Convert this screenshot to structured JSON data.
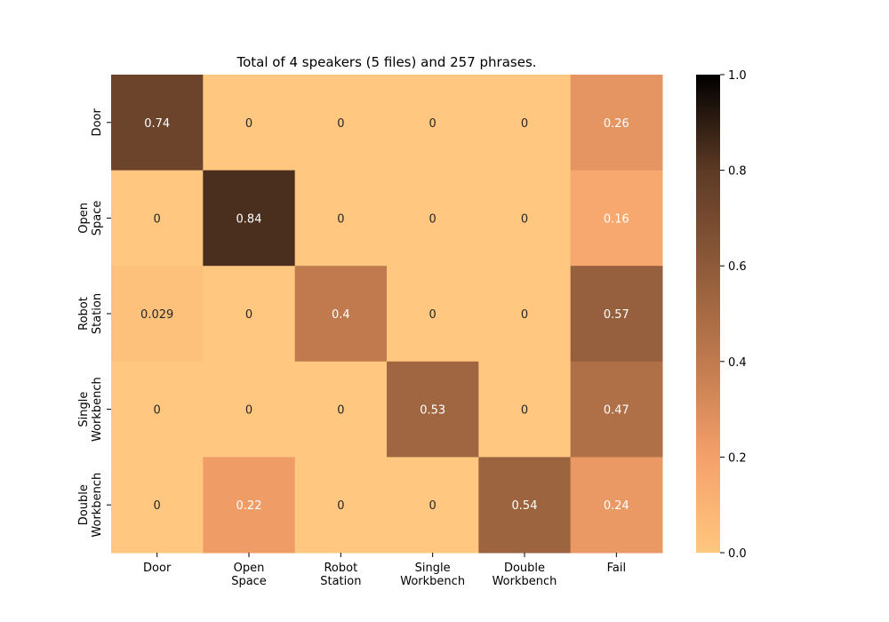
{
  "chart_data": {
    "type": "heatmap",
    "title": "Total of 4 speakers (5 files) and 257 phrases.",
    "xlabel": "",
    "ylabel": "",
    "x_categories": [
      [
        "Door"
      ],
      [
        "Open",
        "Space"
      ],
      [
        "Robot",
        "Station"
      ],
      [
        "Single",
        "Workbench"
      ],
      [
        "Double",
        "Workbench"
      ],
      [
        "Fail"
      ]
    ],
    "y_categories": [
      [
        "Door"
      ],
      [
        "Open",
        "Space"
      ],
      [
        "Robot",
        "Station"
      ],
      [
        "Single",
        "Workbench"
      ],
      [
        "Double",
        "Workbench"
      ]
    ],
    "values": [
      [
        0.74,
        0,
        0,
        0,
        0,
        0.26
      ],
      [
        0,
        0.84,
        0,
        0,
        0,
        0.16
      ],
      [
        0.029,
        0,
        0.4,
        0,
        0,
        0.57
      ],
      [
        0,
        0,
        0,
        0.53,
        0,
        0.47
      ],
      [
        0,
        0.22,
        0,
        0,
        0.54,
        0.24
      ]
    ],
    "labels": [
      [
        "0.74",
        "0",
        "0",
        "0",
        "0",
        "0.26"
      ],
      [
        "0",
        "0.84",
        "0",
        "0",
        "0",
        "0.16"
      ],
      [
        "0.029",
        "0",
        "0.4",
        "0",
        "0",
        "0.57"
      ],
      [
        "0",
        "0",
        "0",
        "0.53",
        "0",
        "0.47"
      ],
      [
        "0",
        "0.22",
        "0",
        "0",
        "0.54",
        "0.24"
      ]
    ],
    "colormap": "copper_r",
    "color_range": [
      0,
      1
    ],
    "colorbar_ticks": [
      "0.0",
      "0.2",
      "0.4",
      "0.6",
      "0.8",
      "1.0"
    ],
    "colorbar_tick_values": [
      0,
      0.2,
      0.4,
      0.6,
      0.8,
      1.0
    ],
    "colorbar_stops": [
      {
        "v": 0.0,
        "c": "#ffc77f"
      },
      {
        "v": 0.2,
        "c": "#f5a06a"
      },
      {
        "v": 0.4,
        "c": "#c07a4e"
      },
      {
        "v": 0.6,
        "c": "#8e5a3a"
      },
      {
        "v": 0.8,
        "c": "#5c3a25"
      },
      {
        "v": 1.0,
        "c": "#000000"
      }
    ],
    "legend": "colorbar-right"
  }
}
